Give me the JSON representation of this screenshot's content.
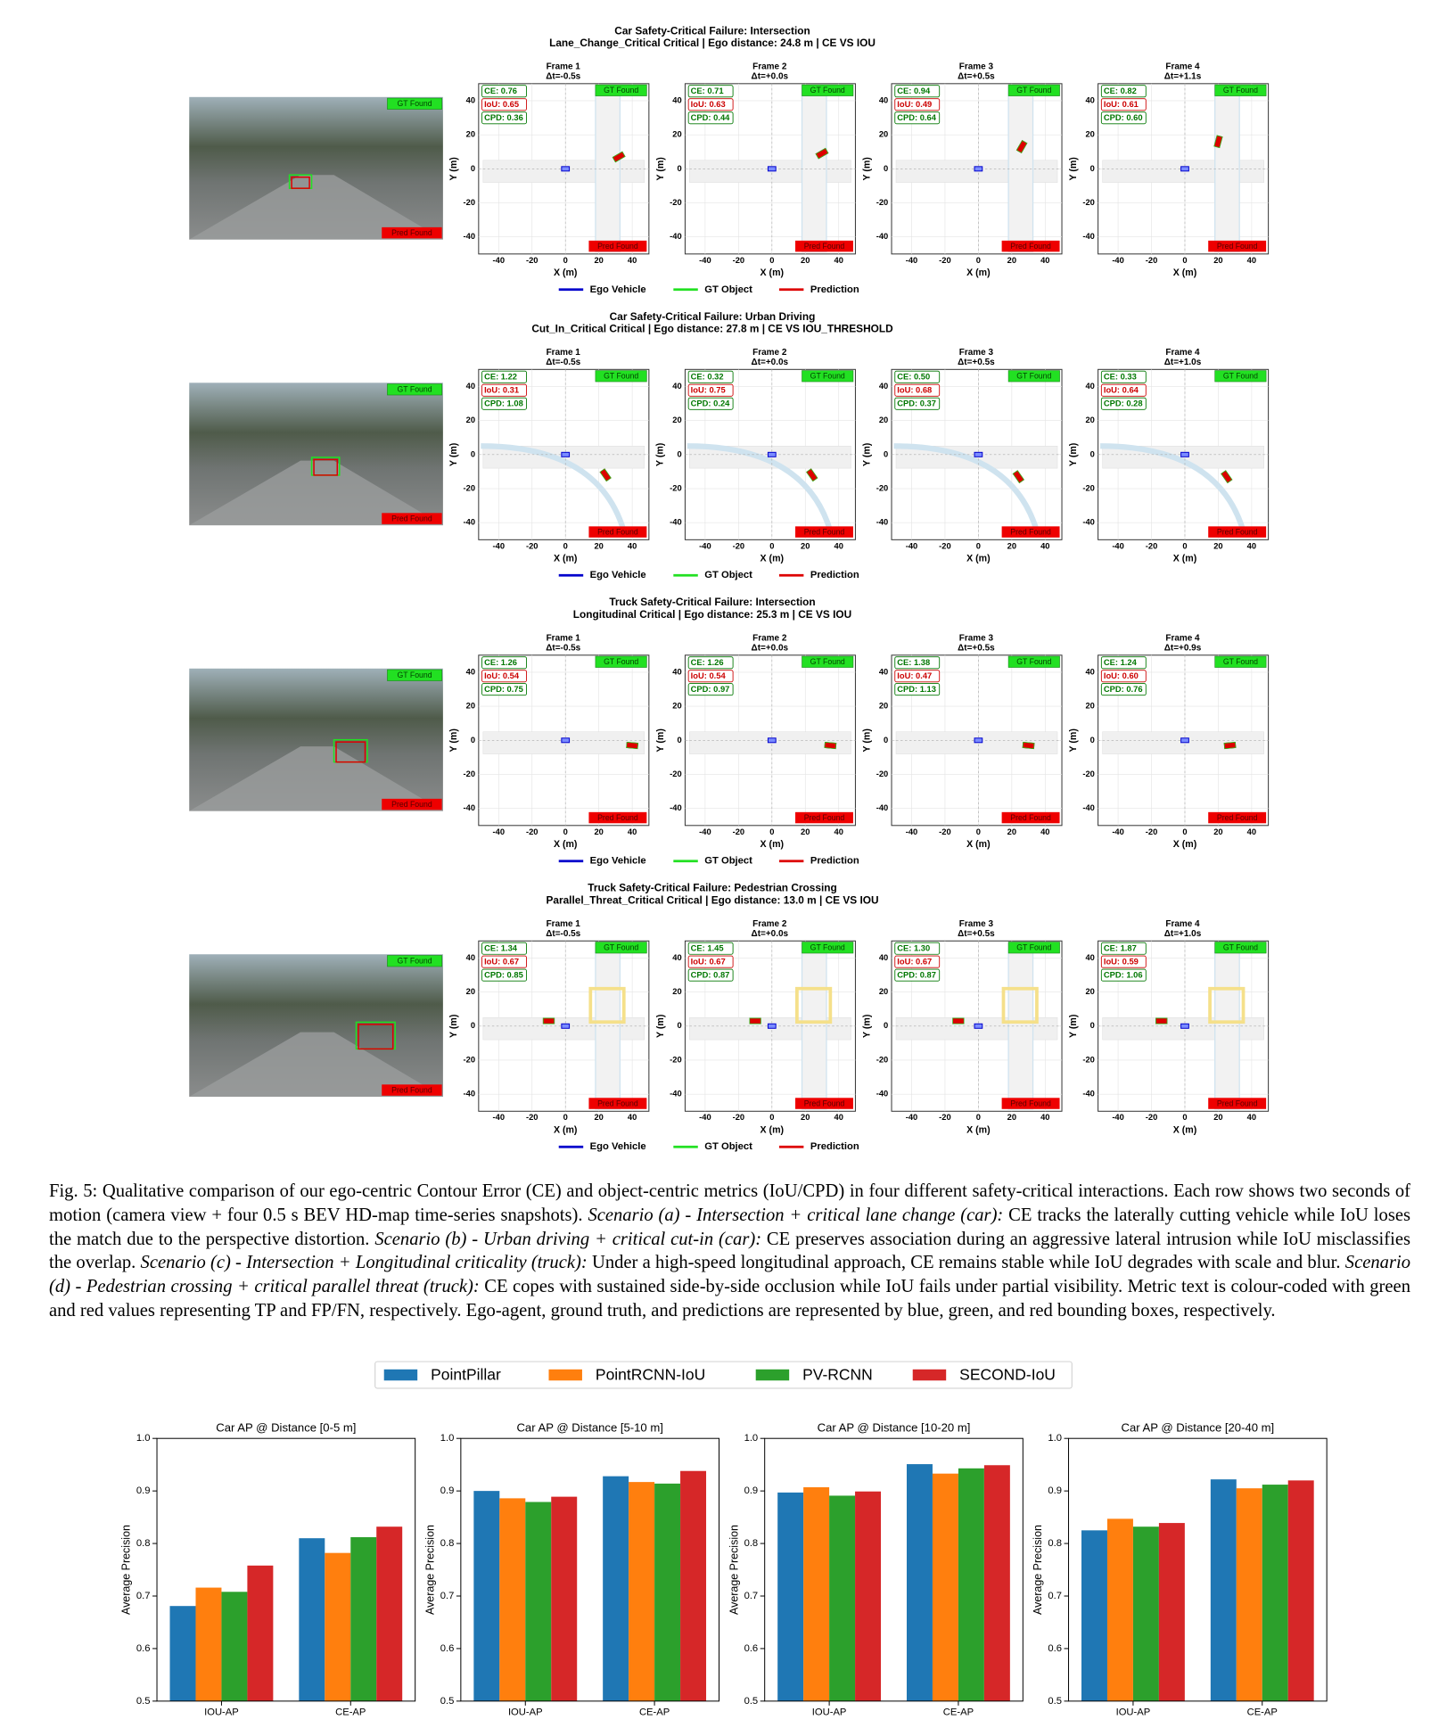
{
  "figure": {
    "rows": [
      {
        "title": "Car Safety-Critical Failure: Intersection",
        "subtitle": "Lane_Change_Critical Critical | Ego distance: 24.8 m | CE VS IOU",
        "frames": [
          {
            "label": "Frame 1",
            "dt": "Δt=-0.5s",
            "ce": "CE: 0.76",
            "iou": "IoU: 0.65",
            "cpd": "CPD: 0.36"
          },
          {
            "label": "Frame 2",
            "dt": "Δt=+0.0s",
            "ce": "CE: 0.71",
            "iou": "IoU: 0.63",
            "cpd": "CPD: 0.44"
          },
          {
            "label": "Frame 3",
            "dt": "Δt=+0.5s",
            "ce": "CE: 0.94",
            "iou": "IoU: 0.49",
            "cpd": "CPD: 0.64"
          },
          {
            "label": "Frame 4",
            "dt": "Δt=+1.1s",
            "ce": "CE: 0.82",
            "iou": "IoU: 0.61",
            "cpd": "CPD: 0.60"
          }
        ]
      },
      {
        "title": "Car Safety-Critical Failure: Urban Driving",
        "subtitle": "Cut_In_Critical Critical | Ego distance: 27.8 m | CE VS IOU_THRESHOLD",
        "frames": [
          {
            "label": "Frame 1",
            "dt": "Δt=-0.5s",
            "ce": "CE: 1.22",
            "iou": "IoU: 0.31",
            "cpd": "CPD: 1.08"
          },
          {
            "label": "Frame 2",
            "dt": "Δt=+0.0s",
            "ce": "CE: 0.32",
            "iou": "IoU: 0.75",
            "cpd": "CPD: 0.24"
          },
          {
            "label": "Frame 3",
            "dt": "Δt=+0.5s",
            "ce": "CE: 0.50",
            "iou": "IoU: 0.68",
            "cpd": "CPD: 0.37"
          },
          {
            "label": "Frame 4",
            "dt": "Δt=+1.0s",
            "ce": "CE: 0.33",
            "iou": "IoU: 0.64",
            "cpd": "CPD: 0.28"
          }
        ]
      },
      {
        "title": "Truck Safety-Critical Failure: Intersection",
        "subtitle": "Longitudinal Critical | Ego distance: 25.3 m | CE VS IOU",
        "frames": [
          {
            "label": "Frame 1",
            "dt": "Δt=-0.5s",
            "ce": "CE: 1.26",
            "iou": "IoU: 0.54",
            "cpd": "CPD: 0.75"
          },
          {
            "label": "Frame 2",
            "dt": "Δt=+0.0s",
            "ce": "CE: 1.26",
            "iou": "IoU: 0.54",
            "cpd": "CPD: 0.97"
          },
          {
            "label": "Frame 3",
            "dt": "Δt=+0.5s",
            "ce": "CE: 1.38",
            "iou": "IoU: 0.47",
            "cpd": "CPD: 1.13"
          },
          {
            "label": "Frame 4",
            "dt": "Δt=+0.9s",
            "ce": "CE: 1.24",
            "iou": "IoU: 0.60",
            "cpd": "CPD: 0.76"
          }
        ]
      },
      {
        "title": "Truck Safety-Critical Failure: Pedestrian Crossing",
        "subtitle": "Parallel_Threat_Critical Critical | Ego distance: 13.0 m | CE VS IOU",
        "frames": [
          {
            "label": "Frame 1",
            "dt": "Δt=-0.5s",
            "ce": "CE: 1.34",
            "iou": "IoU: 0.67",
            "cpd": "CPD: 0.85"
          },
          {
            "label": "Frame 2",
            "dt": "Δt=+0.0s",
            "ce": "CE: 1.45",
            "iou": "IoU: 0.67",
            "cpd": "CPD: 0.87"
          },
          {
            "label": "Frame 3",
            "dt": "Δt=+0.5s",
            "ce": "CE: 1.30",
            "iou": "IoU: 0.67",
            "cpd": "CPD: 0.87"
          },
          {
            "label": "Frame 4",
            "dt": "Δt=+1.0s",
            "ce": "CE: 1.87",
            "iou": "IoU: 0.59",
            "cpd": "CPD: 1.06"
          }
        ]
      }
    ],
    "gt_label": "GT Found",
    "pred_label": "Pred Found",
    "xlabel": "X (m)",
    "ylabel": "Y (m)",
    "xlim": [
      -52,
      50
    ],
    "ylim": [
      -50,
      50
    ],
    "xticks": [
      -40,
      -20,
      0,
      20,
      40
    ],
    "yticks": [
      40,
      20,
      0,
      -20,
      -40
    ],
    "legend": [
      {
        "name": "Ego Vehicle",
        "color": "#0000cc"
      },
      {
        "name": "GT Object",
        "color": "#22e022"
      },
      {
        "name": "Prediction",
        "color": "#dd0000"
      }
    ]
  },
  "caption": [
    {
      "text": "Fig. 5: Qualitative comparison of our ego-centric Contour Error (CE) and object-centric metrics (IoU/CPD) in four different safety-critical interactions. Each row shows two seconds of motion (camera view + four 0.5 s BEV HD-map time-series snapshots). ",
      "italic": false
    },
    {
      "text": "Scenario (a) - Intersection + critical lane change (car):",
      "italic": true
    },
    {
      "text": " CE tracks the laterally cutting vehicle while IoU loses the match due to the perspective distortion. ",
      "italic": false
    },
    {
      "text": "Scenario (b) - Urban driving + critical cut-in (car):",
      "italic": true
    },
    {
      "text": " CE preserves association during an aggressive lateral intrusion while IoU misclassifies the overlap. ",
      "italic": false
    },
    {
      "text": "Scenario (c) - Intersection + Longitudinal criticality (truck):",
      "italic": true
    },
    {
      "text": " Under a high-speed longitudinal approach, CE remains stable while IoU degrades with scale and blur. ",
      "italic": false
    },
    {
      "text": "Scenario (d) - Pedestrian crossing + critical parallel threat (truck):",
      "italic": true
    },
    {
      "text": " CE copes with sustained side-by-side occlusion while IoU fails under partial visibility. Metric text is colour-coded with green and red values representing TP and FP/FN, respectively. Ego-agent, ground truth, and predictions are represented by blue, green, and red bounding boxes, respectively.",
      "italic": false
    }
  ],
  "chart_data": [
    {
      "type": "bar",
      "title": "Car AP @ Distance [0-5 m]",
      "ylabel": "Average Precision",
      "categories": [
        "IOU-AP",
        "CE-AP"
      ],
      "ylim": [
        0.5,
        1.0
      ],
      "yticks": [
        0.5,
        0.6,
        0.7,
        0.8,
        0.9,
        {
          "value": 1,
          "label": "1.0"
        }
      ],
      "series": [
        {
          "name": "PointPillar",
          "color": "#1f77b4",
          "values": [
            0.681,
            0.81
          ]
        },
        {
          "name": "PointRCNN-IoU",
          "color": "#ff7f0e",
          "values": [
            0.716,
            0.782
          ]
        },
        {
          "name": "PV-RCNN",
          "color": "#2ca02c",
          "values": [
            0.708,
            0.812
          ]
        },
        {
          "name": "SECOND-IoU",
          "color": "#d62728",
          "values": [
            0.758,
            0.832
          ]
        }
      ]
    },
    {
      "type": "bar",
      "title": "Car AP @ Distance [5-10 m]",
      "ylabel": "Average Precision",
      "categories": [
        "IOU-AP",
        "CE-AP"
      ],
      "ylim": [
        0.5,
        1.0
      ],
      "yticks": [
        0.5,
        0.6,
        0.7,
        0.8,
        0.9,
        {
          "value": 1,
          "label": "1.0"
        }
      ],
      "series": [
        {
          "name": "PointPillar",
          "color": "#1f77b4",
          "values": [
            0.9,
            0.928
          ]
        },
        {
          "name": "PointRCNN-IoU",
          "color": "#ff7f0e",
          "values": [
            0.886,
            0.917
          ]
        },
        {
          "name": "PV-RCNN",
          "color": "#2ca02c",
          "values": [
            0.879,
            0.914
          ]
        },
        {
          "name": "SECOND-IoU",
          "color": "#d62728",
          "values": [
            0.889,
            0.938
          ]
        }
      ]
    },
    {
      "type": "bar",
      "title": "Car AP @ Distance [10-20 m]",
      "ylabel": "Average Precision",
      "categories": [
        "IOU-AP",
        "CE-AP"
      ],
      "ylim": [
        0.5,
        1.0
      ],
      "yticks": [
        0.5,
        0.6,
        0.7,
        0.8,
        0.9,
        {
          "value": 1,
          "label": "1.0"
        }
      ],
      "series": [
        {
          "name": "PointPillar",
          "color": "#1f77b4",
          "values": [
            0.897,
            0.951
          ]
        },
        {
          "name": "PointRCNN-IoU",
          "color": "#ff7f0e",
          "values": [
            0.907,
            0.933
          ]
        },
        {
          "name": "PV-RCNN",
          "color": "#2ca02c",
          "values": [
            0.891,
            0.943
          ]
        },
        {
          "name": "SECOND-IoU",
          "color": "#d62728",
          "values": [
            0.899,
            0.949
          ]
        }
      ]
    },
    {
      "type": "bar",
      "title": "Car AP @ Distance [20-40 m]",
      "ylabel": "Average Precision",
      "categories": [
        "IOU-AP",
        "CE-AP"
      ],
      "ylim": [
        0.5,
        1.0
      ],
      "yticks": [
        0.5,
        0.6,
        0.7,
        0.8,
        0.9,
        {
          "value": 1,
          "label": "1.0"
        }
      ],
      "series": [
        {
          "name": "PointPillar",
          "color": "#1f77b4",
          "values": [
            0.825,
            0.922
          ]
        },
        {
          "name": "PointRCNN-IoU",
          "color": "#ff7f0e",
          "values": [
            0.847,
            0.905
          ]
        },
        {
          "name": "PV-RCNN",
          "color": "#2ca02c",
          "values": [
            0.832,
            0.912
          ]
        },
        {
          "name": "SECOND-IoU",
          "color": "#d62728",
          "values": [
            0.839,
            0.92
          ]
        }
      ]
    }
  ]
}
